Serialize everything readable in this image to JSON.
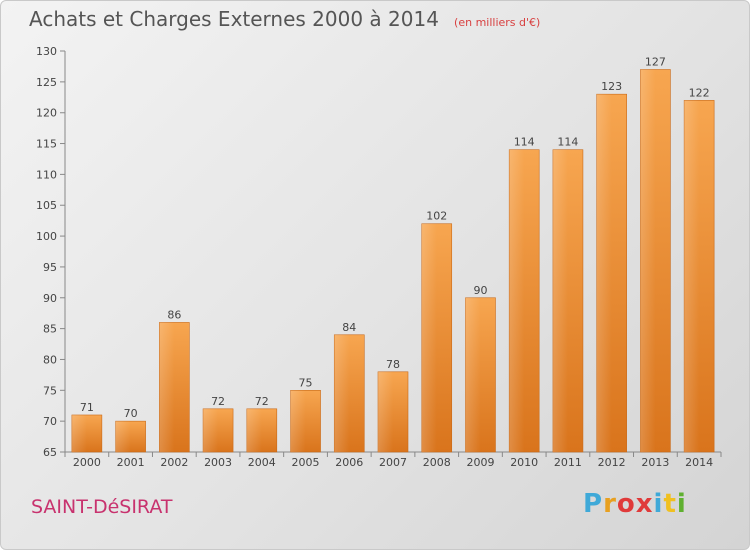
{
  "chart_data": {
    "type": "bar",
    "title": "Achats et Charges Externes 2000 à 2014",
    "unit": "(en milliers d'€)",
    "categories": [
      "2000",
      "2001",
      "2002",
      "2003",
      "2004",
      "2005",
      "2006",
      "2007",
      "2008",
      "2009",
      "2010",
      "2011",
      "2012",
      "2013",
      "2014"
    ],
    "values": [
      71,
      70,
      86,
      72,
      72,
      75,
      84,
      78,
      102,
      90,
      114,
      114,
      123,
      127,
      122
    ],
    "ylim": [
      65,
      130
    ],
    "yticks": [
      65,
      70,
      75,
      80,
      85,
      90,
      95,
      100,
      105,
      110,
      115,
      120,
      125,
      130
    ],
    "grid": false,
    "bar_color": "#f29a40"
  },
  "location": "SAINT-DéSIRAT",
  "logo": {
    "text": "Proxiti",
    "colors": [
      "#3fa9d8",
      "#e8a020",
      "#e03a3a",
      "#e03a3a",
      "#3fa9d8",
      "#f0c020",
      "#5fb030"
    ]
  }
}
